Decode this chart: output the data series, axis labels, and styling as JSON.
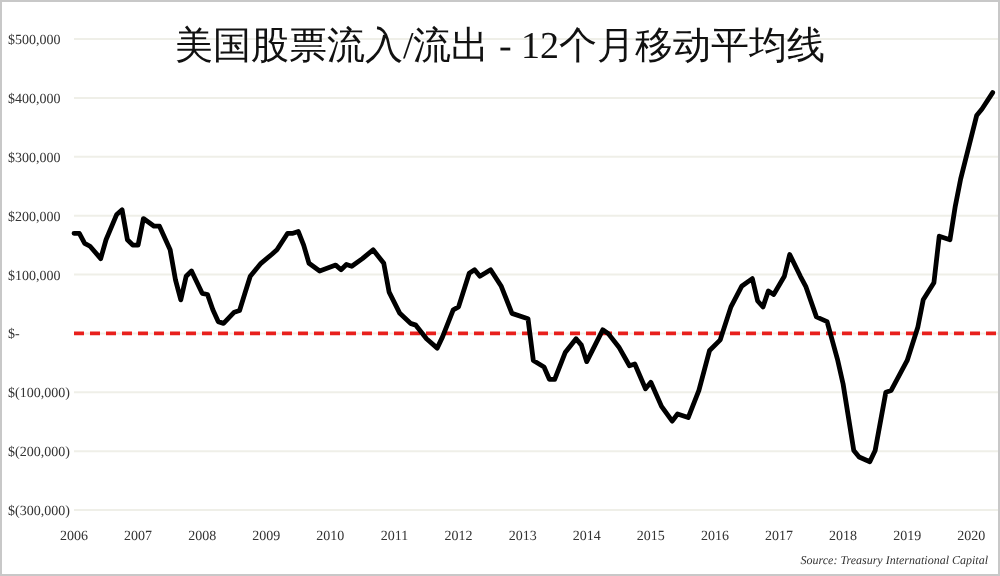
{
  "chart_data": {
    "type": "line",
    "title": "美国股票流入/流出 - 12个月移动平均线",
    "annotations": [
      "Source: Treasury International Capital"
    ],
    "x": [
      "2006-01",
      "2006-02",
      "2006-03",
      "2006-04",
      "2006-06",
      "2006-07",
      "2006-09",
      "2006-10",
      "2006-11",
      "2006-12",
      "2007-01",
      "2007-02",
      "2007-04",
      "2007-05",
      "2007-07",
      "2007-08",
      "2007-09",
      "2007-10",
      "2007-11",
      "2008-01",
      "2008-02",
      "2008-03",
      "2008-04",
      "2008-05",
      "2008-07",
      "2008-08",
      "2008-09",
      "2008-10",
      "2008-11",
      "2008-12",
      "2009-02",
      "2009-03",
      "2009-05",
      "2009-06",
      "2009-07",
      "2009-08",
      "2009-09",
      "2009-11",
      "2010-02",
      "2010-03",
      "2010-04",
      "2010-05",
      "2010-07",
      "2010-09",
      "2010-11",
      "2010-12",
      "2011-02",
      "2011-04",
      "2011-05",
      "2011-07",
      "2011-09",
      "2011-10",
      "2011-12",
      "2012-01",
      "2012-03",
      "2012-04",
      "2012-05",
      "2012-07",
      "2012-09",
      "2012-11",
      "2013-02",
      "2013-03",
      "2013-05",
      "2013-06",
      "2013-07",
      "2013-09",
      "2013-11",
      "2013-12",
      "2014-01",
      "2014-04",
      "2014-05",
      "2014-07",
      "2014-09",
      "2014-10",
      "2014-12",
      "2015-01",
      "2015-03",
      "2015-05",
      "2015-06",
      "2015-08",
      "2015-10",
      "2015-12",
      "2016-02",
      "2016-04",
      "2016-06",
      "2016-08",
      "2016-09",
      "2016-10",
      "2016-11",
      "2016-12",
      "2017-02",
      "2017-03",
      "2017-05",
      "2017-06",
      "2017-08",
      "2017-10",
      "2017-12",
      "2018-01",
      "2018-03",
      "2018-04",
      "2018-06",
      "2018-07",
      "2018-09",
      "2018-10",
      "2018-12",
      "2019-01",
      "2019-03",
      "2019-04",
      "2019-06",
      "2019-07",
      "2019-09",
      "2019-10",
      "2019-11",
      "2020-02",
      "2020-03",
      "2020-05"
    ],
    "series": [
      {
        "color": "#000000",
        "values": [
          170000,
          170000,
          153000,
          148000,
          127000,
          159000,
          202000,
          210000,
          159000,
          150000,
          150000,
          195000,
          182000,
          182000,
          142000,
          91000,
          57000,
          97000,
          106000,
          68000,
          66000,
          40000,
          20000,
          17000,
          36000,
          39000,
          68000,
          97000,
          108000,
          119000,
          134000,
          142000,
          170000,
          170000,
          173000,
          150000,
          119000,
          106000,
          116000,
          108000,
          117000,
          114000,
          127000,
          142000,
          119000,
          70000,
          34000,
          17000,
          14000,
          -9000,
          -25000,
          -6000,
          40000,
          45000,
          102000,
          108000,
          97000,
          108000,
          80000,
          34000,
          25000,
          -46000,
          -57000,
          -78000,
          -78000,
          -32000,
          -9000,
          -20000,
          -48000,
          6000,
          0,
          -23000,
          -55000,
          -52000,
          -94000,
          -83000,
          -124000,
          -149000,
          -137000,
          -143000,
          -97000,
          -29000,
          -11000,
          45000,
          80000,
          93000,
          55000,
          45000,
          72000,
          66000,
          97000,
          134000,
          97000,
          80000,
          28000,
          20000,
          -46000,
          -86000,
          -199000,
          -210000,
          -218000,
          -199000,
          -100000,
          -97000,
          -63000,
          -46000,
          11000,
          57000,
          86000,
          165000,
          159000,
          216000,
          262000,
          370000,
          381000,
          409000
        ]
      }
    ],
    "xlim": [
      "2006",
      "2020-06"
    ],
    "ylim": [
      -300000,
      500000
    ],
    "xticks": [
      "2006",
      "2007",
      "2008",
      "2009",
      "2010",
      "2011",
      "2012",
      "2013",
      "2014",
      "2015",
      "2016",
      "2017",
      "2018",
      "2019",
      "2020"
    ],
    "yticks": [
      {
        "value": 500000,
        "label": "$500,000"
      },
      {
        "value": 400000,
        "label": "$400,000"
      },
      {
        "value": 300000,
        "label": "$300,000"
      },
      {
        "value": 200000,
        "label": "$200,000"
      },
      {
        "value": 100000,
        "label": "$100,000"
      },
      {
        "value": 0,
        "label": "$-"
      },
      {
        "value": -100000,
        "label": "$(100,000)"
      },
      {
        "value": -200000,
        "label": "$(200,000)"
      },
      {
        "value": -300000,
        "label": "$(300,000)"
      }
    ],
    "grid": "y",
    "line_style": "solid",
    "ref_lines": [
      {
        "axis": "y",
        "value": 0,
        "color": "#e8201c",
        "line_style": "dashed"
      }
    ]
  }
}
